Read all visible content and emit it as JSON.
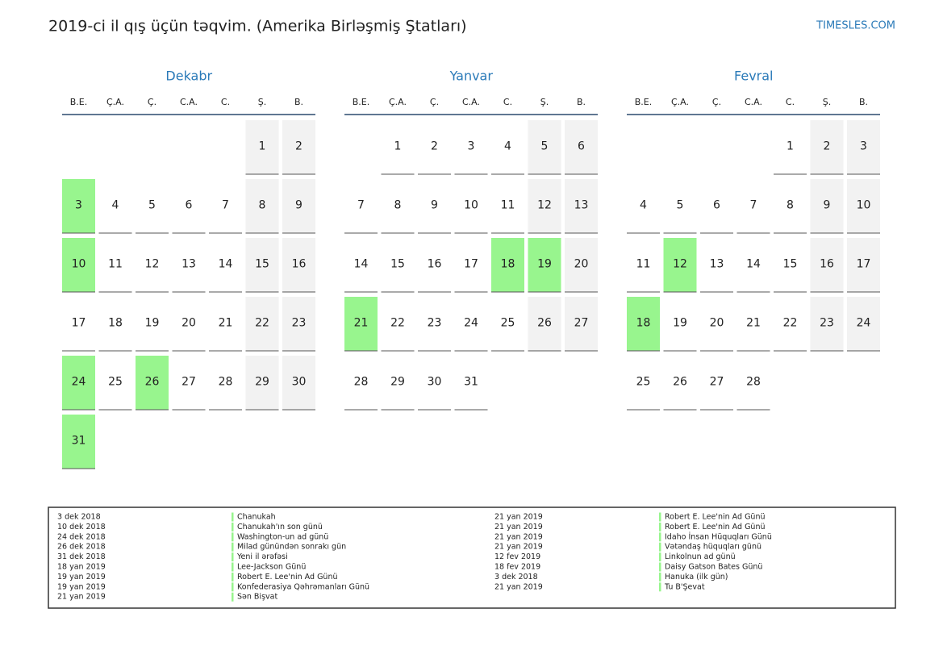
{
  "header": {
    "title": "2019-ci il qış üçün təqvim. (Amerika Birləşmiş Ştatları)",
    "site": "TIMESLES.COM"
  },
  "weekdays": [
    "B.E.",
    "Ç.A.",
    "Ç.",
    "C.A.",
    "C.",
    "Ş.",
    "B."
  ],
  "colors": {
    "holiday": "#98f58e",
    "weekend": "#f2f2f2",
    "month": "#2a7ab8"
  },
  "months": [
    {
      "name": "Dekabr",
      "holidays": [
        3,
        10,
        24,
        26,
        31
      ],
      "weeks": [
        [
          null,
          null,
          null,
          null,
          null,
          1,
          2
        ],
        [
          3,
          4,
          5,
          6,
          7,
          8,
          9
        ],
        [
          10,
          11,
          12,
          13,
          14,
          15,
          16
        ],
        [
          17,
          18,
          19,
          20,
          21,
          22,
          23
        ],
        [
          24,
          25,
          26,
          27,
          28,
          29,
          30
        ],
        [
          31,
          null,
          null,
          null,
          null,
          null,
          null
        ]
      ]
    },
    {
      "name": "Yanvar",
      "holidays": [
        18,
        19,
        21
      ],
      "weeks": [
        [
          null,
          1,
          2,
          3,
          4,
          5,
          6
        ],
        [
          7,
          8,
          9,
          10,
          11,
          12,
          13
        ],
        [
          14,
          15,
          16,
          17,
          18,
          19,
          20
        ],
        [
          21,
          22,
          23,
          24,
          25,
          26,
          27
        ],
        [
          28,
          29,
          30,
          31,
          null,
          null,
          null
        ]
      ]
    },
    {
      "name": "Fevral",
      "holidays": [
        12,
        18
      ],
      "weeks": [
        [
          null,
          null,
          null,
          null,
          1,
          2,
          3
        ],
        [
          4,
          5,
          6,
          7,
          8,
          9,
          10
        ],
        [
          11,
          12,
          13,
          14,
          15,
          16,
          17
        ],
        [
          18,
          19,
          20,
          21,
          22,
          23,
          24
        ],
        [
          25,
          26,
          27,
          28,
          null,
          null,
          null
        ]
      ]
    }
  ],
  "events": [
    {
      "date": "3 dek 2018",
      "name": "Chanukah"
    },
    {
      "date": "10 dek 2018",
      "name": "Chanukah'ın son günü"
    },
    {
      "date": "24 dek 2018",
      "name": "Washington-un ad günü"
    },
    {
      "date": "26 dek 2018",
      "name": "Milad günündən sonrakı gün"
    },
    {
      "date": "31 dek 2018",
      "name": "Yeni il ərəfəsi"
    },
    {
      "date": "18 yan 2019",
      "name": "Lee-Jackson Günü"
    },
    {
      "date": "19 yan 2019",
      "name": "Robert E. Lee'nin Ad Günü"
    },
    {
      "date": "19 yan 2019",
      "name": "Konfederasiya Qəhrəmanları Günü"
    },
    {
      "date": "21 yan 2019",
      "name": "Sən Bişvat"
    },
    {
      "date": "21 yan 2019",
      "name": "Robert E. Lee'nin Ad Günü"
    },
    {
      "date": "21 yan 2019",
      "name": "Robert E. Lee'nin Ad Günü"
    },
    {
      "date": "21 yan 2019",
      "name": "Idaho İnsan Hüquqları Günü"
    },
    {
      "date": "21 yan 2019",
      "name": "Vətəndaş hüquqları günü"
    },
    {
      "date": "12 fev 2019",
      "name": "Linkolnun ad günü"
    },
    {
      "date": "18 fev 2019",
      "name": "Daisy Gatson Bates Günü"
    },
    {
      "date": "3 dek 2018",
      "name": "Hanuka (ilk gün)"
    },
    {
      "date": "21 yan 2019",
      "name": "Tu B'Şevat"
    }
  ]
}
